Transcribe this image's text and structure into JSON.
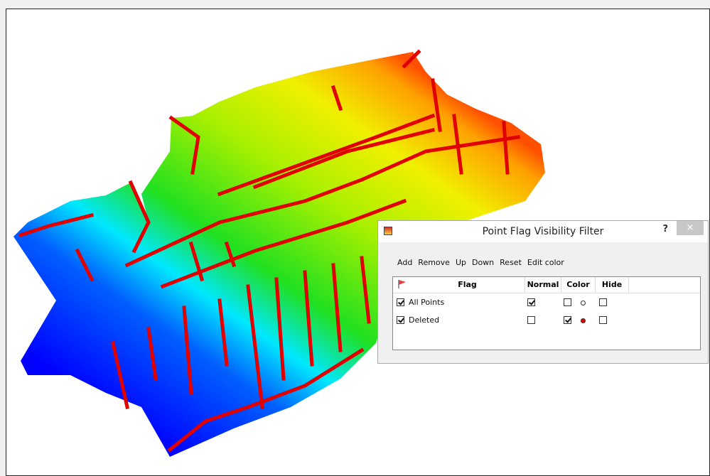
{
  "window": {
    "title": "Point Flag Visibility Filter",
    "help": "?",
    "close": "×",
    "toolbar": [
      "Add",
      "Remove",
      "Up",
      "Down",
      "Reset",
      "Edit color"
    ],
    "columns": [
      "Flag",
      "Normal",
      "Color",
      "Hide"
    ],
    "rows": [
      {
        "flag": "All Points",
        "enabled": true,
        "normal": true,
        "color": false,
        "color_swatch": "#ffffff",
        "hide": false
      },
      {
        "flag": "Deleted",
        "enabled": true,
        "normal": false,
        "color": true,
        "color_swatch": "#e00000",
        "hide": false
      }
    ]
  }
}
